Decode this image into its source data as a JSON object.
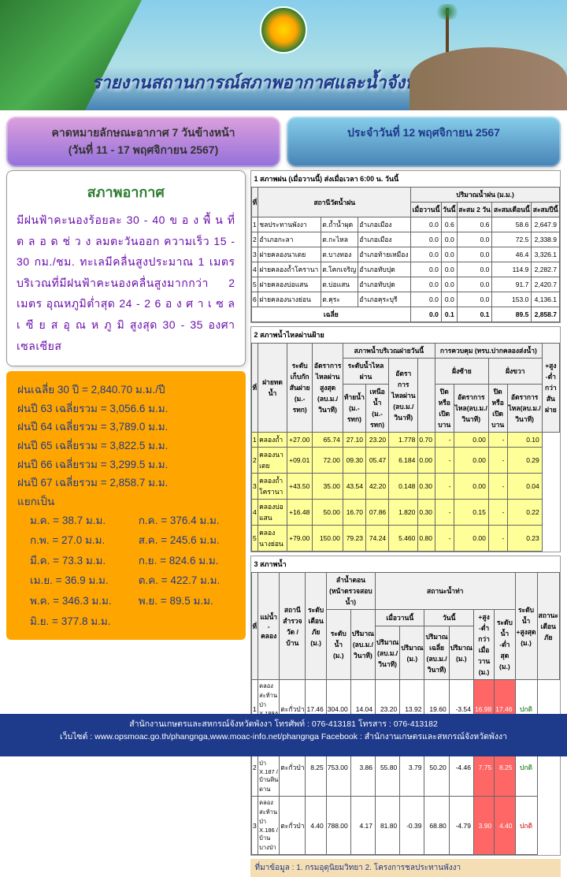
{
  "header": {
    "title": "รายงานสถานการณ์สภาพอากาศและน้ำจังหวัดพังงา"
  },
  "boxes": {
    "forecast": "คาดหมายลักษณะอากาศ 7 วันข้างหน้า\n(วันที่ 11 - 17 พฤศจิกายน 2567)",
    "date": "ประจำวันที่ 12 พฤศจิกายน 2567"
  },
  "weather": {
    "title": "สภาพอากาศ",
    "body": "มีฝนฟ้าคะนองร้อยละ 30 - 40 ข อ ง พื้ น ที่  ต ล อ ด ช่ ว ง ลมตะวันออก ความเร็ว 15 - 30 กม./ชม. ทะเลมีคลื่นสูงประมาณ 1 เมตร บริเวณที่มีฝนฟ้าคะนองคลื่นสูงมากกว่า 2 เมตร อุณหภูมิต่ำสุด 24 - 2 6 อ ง ศ า เ ซ ล เ ซี ย ส อุ ณ ห ภู มิ สูงสุด 30 - 35 องศาเซลเซียส"
  },
  "stats": {
    "lines": [
      "ฝนเฉลี่ย 30 ปี = 2,840.70 ม.ม./ปี",
      "ฝนปี 63 เฉลี่ยรวม = 3,056.6 ม.ม.",
      "ฝนปี 64 เฉลี่ยรวม = 3,789.0 ม.ม.",
      "ฝนปี 65 เฉลี่ยรวม = 3,822.5 ม.ม.",
      "ฝนปี 66 เฉลี่ยรวม = 3,299.5 ม.ม.",
      "ฝนปี 67 เฉลี่ยรวม = 2,858.7 ม.ม.",
      "แยกเป็น"
    ],
    "months": [
      {
        "m": "ม.ค.",
        "v": "38.7"
      },
      {
        "m": "ก.ค.",
        "v": "376.4"
      },
      {
        "m": "ก.พ.",
        "v": "27.0"
      },
      {
        "m": "ส.ค.",
        "v": "245.6"
      },
      {
        "m": "มี.ค.",
        "v": "73.3"
      },
      {
        "m": "ก.ย.",
        "v": "824.6"
      },
      {
        "m": "เม.ย.",
        "v": "36.9"
      },
      {
        "m": "ต.ค.",
        "v": "422.7"
      },
      {
        "m": "พ.ค.",
        "v": "346.3"
      },
      {
        "m": "พ.ย.",
        "v": "89.5"
      },
      {
        "m": "มิ.ย.",
        "v": "377.8"
      }
    ]
  },
  "rain_table": {
    "section": "1 สภาพฝน   (เมื่อวานนี้)                                              ส่งเมื่อเวลา  6:00 น. วันนี้",
    "headers": {
      "station": "สถานีวัดน้ำฝน",
      "group": "ปริมาณน้ำฝน (ม.ม.)",
      "c1": "เมื่อวานนี้",
      "c2": "วันนี้",
      "c3": "สะสม 2 วัน",
      "c4": "สะสมเดือนนี้",
      "c5": "สะสมปีนี้"
    },
    "rows": [
      {
        "i": "1",
        "s1": "ชลประทานพังงา",
        "s2": "ต.ถ้ำน้ำผุด",
        "s3": "อำเภอเมือง",
        "v": [
          "0.0",
          "0.6",
          "0.6",
          "58.6",
          "2,647.9"
        ]
      },
      {
        "i": "2",
        "s1": "อำเภอกะลา",
        "s2": "ต.กะไหล",
        "s3": "อำเภอเมือง",
        "v": [
          "0.0",
          "0.0",
          "0.0",
          "72.5",
          "2,338.9"
        ]
      },
      {
        "i": "3",
        "s1": "ฝายคลองนาเตย",
        "s2": "ต.บางทอง",
        "s3": "อำเภอท้ายเหมือง",
        "v": [
          "0.0",
          "0.0",
          "0.0",
          "46.4",
          "3,326.1"
        ]
      },
      {
        "i": "4",
        "s1": "ฝายคลองถ้ำโครานา",
        "s2": "ต.โคกเจริญ",
        "s3": "อำเภอทับปุด",
        "v": [
          "0.0",
          "0.0",
          "0.0",
          "114.9",
          "2,282.7"
        ]
      },
      {
        "i": "5",
        "s1": "ฝายคลองบ่อแสน",
        "s2": "ต.บ่อแสน",
        "s3": "อำเภอทับปุด",
        "v": [
          "0.0",
          "0.0",
          "0.0",
          "91.7",
          "2,420.7"
        ]
      },
      {
        "i": "6",
        "s1": "ฝายคลองนางย่อน",
        "s2": "ต.คุระ",
        "s3": "อำเภอคุระบุรี",
        "v": [
          "0.0",
          "0.0",
          "0.0",
          "153.0",
          "4,136.1"
        ]
      }
    ],
    "avg": {
      "label": "เฉลี่ย",
      "v": [
        "0.0",
        "0.1",
        "0.1",
        "89.5",
        "2,858.7"
      ]
    }
  },
  "dam_table": {
    "section": "2 สภาพน้ำไหลผ่านฝ้าย",
    "rows": [
      {
        "i": "1",
        "n": "คลองถ้ำ",
        "l": "+27.00",
        "v": [
          "65.74",
          "27.10",
          "23.20",
          "1.778",
          "0.70",
          "-",
          "0.00",
          "-",
          "0.10"
        ]
      },
      {
        "i": "2",
        "n": "คลองนาเตย",
        "l": "+09.01",
        "v": [
          "72.00",
          "09.30",
          "05.47",
          "6.184",
          "0.00",
          "-",
          "0.00",
          "-",
          "0.29"
        ]
      },
      {
        "i": "3",
        "n": "คลองถ้ำโครานา",
        "l": "+43.50",
        "v": [
          "35.00",
          "43.54",
          "42.20",
          "0.148",
          "0.30",
          "-",
          "0.00",
          "-",
          "0.04"
        ]
      },
      {
        "i": "4",
        "n": "คลองบ่อแสน",
        "l": "+16.48",
        "v": [
          "50.00",
          "16.70",
          "07.86",
          "1.820",
          "0.30",
          "-",
          "0.15",
          "-",
          "0.22"
        ]
      },
      {
        "i": "5",
        "n": "คลองนางย่อน",
        "l": "+79.00",
        "v": [
          "150.00",
          "79.23",
          "74.24",
          "5.460",
          "0.80",
          "-",
          "0.00",
          "-",
          "0.23"
        ]
      }
    ]
  },
  "reservoir": {
    "section": "3 สภาพน้ำ",
    "rows": [
      {
        "i": "1",
        "n": "คลองสะท้านป่า X.188A / บ้านบ่อคร",
        "s": "ตะกั่วป่า",
        "v": [
          "17.46",
          "304.00",
          "14.04",
          "23.20",
          "13.92",
          "19.60",
          "-3.54",
          "16.98",
          "17.46",
          "ปกติ"
        ]
      },
      {
        "i": "2",
        "n": "คลองสะท้านป่า X.187 / บ้านหินดาน",
        "s": "ตะกั่วป่า",
        "v": [
          "8.25",
          "753.00",
          "3.86",
          "55.80",
          "3.79",
          "50.20",
          "-4.46",
          "7.75",
          "8.25",
          "ปกติ"
        ]
      },
      {
        "i": "3",
        "n": "คลองสะท้านป่า X.186 / บ้านบางป่า",
        "s": "ตะกั่วป่า",
        "v": [
          "4.40",
          "788.00",
          "4.17",
          "81.80",
          "-0.39",
          "68.80",
          "-4.79",
          "3.90",
          "4.40",
          "ปกติ"
        ]
      }
    ]
  },
  "source": "ที่มาข้อมูล : 1. กรมอุตุนิยมวิทยา 2. โครงการชลประทานพังงา",
  "footer": {
    "l1": "สำนักงานเกษตรและสหกรณ์จังหวัดพังงา โทรศัพท์ : 076-413181    โทรสาร : 076-413182",
    "l2": "เว็บไซต์ : www.opsmoac.go.th/phangnga,www.moac-info.net/phangnga  Facebook : สำนักงานเกษตรและสหกรณ์จังหวัดพังงา"
  }
}
